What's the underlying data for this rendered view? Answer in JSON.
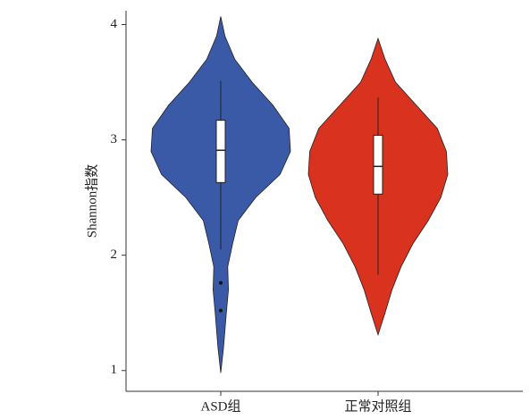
{
  "chart_data": {
    "type": "violin",
    "y_label": "Shannon指数",
    "categories": [
      "ASD组",
      "正常对照组"
    ],
    "ylim": [
      0.82,
      4.12
    ],
    "yticks": [
      1,
      2,
      3,
      4
    ],
    "series": [
      {
        "name": "ASD组",
        "color": "#3a5aa8",
        "violin_y": [
          0.98,
          1.2,
          1.5,
          1.7,
          1.9,
          2.1,
          2.3,
          2.5,
          2.7,
          2.9,
          3.1,
          3.3,
          3.5,
          3.7,
          3.9,
          4.07
        ],
        "density": [
          0,
          0.04,
          0.08,
          0.11,
          0.1,
          0.17,
          0.25,
          0.5,
          0.85,
          1.0,
          0.98,
          0.75,
          0.45,
          0.2,
          0.06,
          0
        ],
        "whisker_low": 2.05,
        "q1": 2.63,
        "median": 2.91,
        "q3": 3.17,
        "whisker_high": 3.51,
        "outliers": [
          1.76,
          1.52
        ]
      },
      {
        "name": "正常对照组",
        "color": "#d9321f",
        "violin_y": [
          1.31,
          1.5,
          1.7,
          1.9,
          2.1,
          2.3,
          2.5,
          2.7,
          2.9,
          3.1,
          3.3,
          3.5,
          3.7,
          3.88
        ],
        "density": [
          0,
          0.1,
          0.2,
          0.33,
          0.5,
          0.72,
          0.9,
          1.0,
          0.98,
          0.85,
          0.55,
          0.25,
          0.1,
          0
        ],
        "whisker_low": 1.83,
        "q1": 2.53,
        "median": 2.77,
        "q3": 3.04,
        "whisker_high": 3.37,
        "outliers": []
      }
    ]
  }
}
